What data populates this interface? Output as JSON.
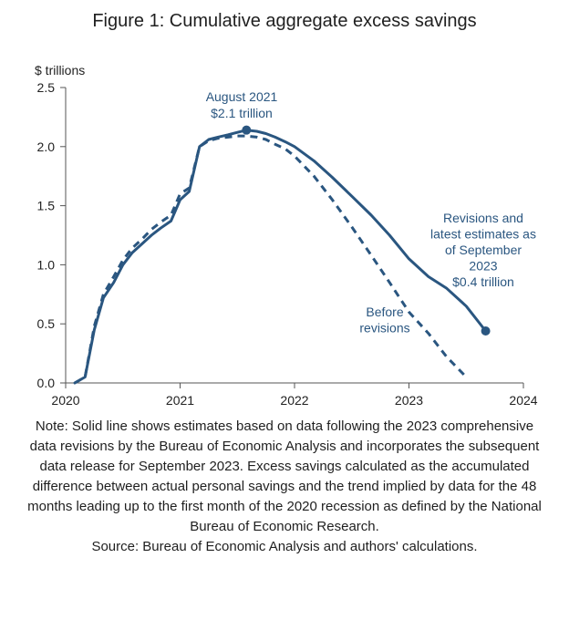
{
  "title": "Figure 1: Cumulative aggregate excess savings",
  "note": "Note: Solid line shows estimates based on data following the 2023 comprehensive data revisions by the Bureau of Economic Analysis and incorporates the subsequent data release for September 2023. Excess savings calculated as the accumulated difference between actual personal savings and the trend implied by data for the 48 months leading up to the first month of the 2020 recession as defined by the National Bureau of Economic Research.",
  "source": "Source: Bureau of Economic Analysis and authors' calculations.",
  "colors": {
    "line": "#2a5680",
    "axis": "#555555",
    "text": "#222222"
  },
  "chart_data": {
    "type": "line",
    "ylabel": "$ trillions",
    "xlim": [
      2020,
      2024
    ],
    "ylim": [
      0,
      2.5
    ],
    "x_ticks": [
      {
        "value": 2020,
        "label": "2020"
      },
      {
        "value": 2021,
        "label": "2021"
      },
      {
        "value": 2022,
        "label": "2022"
      },
      {
        "value": 2023,
        "label": "2023"
      },
      {
        "value": 2024,
        "label": "2024"
      }
    ],
    "y_ticks": [
      {
        "value": 0,
        "label": "0.0"
      },
      {
        "value": 0.5,
        "label": "0.5"
      },
      {
        "value": 1.0,
        "label": "1.0"
      },
      {
        "value": 1.5,
        "label": "1.5"
      },
      {
        "value": 2.0,
        "label": "2.0"
      },
      {
        "value": 2.5,
        "label": "2.5"
      }
    ],
    "grid": false,
    "series": [
      {
        "style": "solid",
        "points": [
          [
            2020.08,
            0.0
          ],
          [
            2020.17,
            0.05
          ],
          [
            2020.25,
            0.45
          ],
          [
            2020.33,
            0.72
          ],
          [
            2020.42,
            0.85
          ],
          [
            2020.5,
            1.0
          ],
          [
            2020.58,
            1.1
          ],
          [
            2020.67,
            1.18
          ],
          [
            2020.75,
            1.25
          ],
          [
            2020.83,
            1.31
          ],
          [
            2020.92,
            1.37
          ],
          [
            2021.0,
            1.55
          ],
          [
            2021.08,
            1.62
          ],
          [
            2021.17,
            2.0
          ],
          [
            2021.25,
            2.06
          ],
          [
            2021.33,
            2.08
          ],
          [
            2021.42,
            2.1
          ],
          [
            2021.5,
            2.12
          ],
          [
            2021.58,
            2.14
          ],
          [
            2021.67,
            2.13
          ],
          [
            2021.75,
            2.11
          ],
          [
            2021.83,
            2.08
          ],
          [
            2021.92,
            2.04
          ],
          [
            2022.0,
            2.0
          ],
          [
            2022.17,
            1.88
          ],
          [
            2022.33,
            1.74
          ],
          [
            2022.5,
            1.58
          ],
          [
            2022.67,
            1.42
          ],
          [
            2022.83,
            1.25
          ],
          [
            2023.0,
            1.05
          ],
          [
            2023.17,
            0.9
          ],
          [
            2023.33,
            0.8
          ],
          [
            2023.5,
            0.65
          ],
          [
            2023.67,
            0.44
          ]
        ]
      },
      {
        "style": "dashed",
        "points": [
          [
            2020.08,
            0.0
          ],
          [
            2020.17,
            0.05
          ],
          [
            2020.25,
            0.48
          ],
          [
            2020.33,
            0.75
          ],
          [
            2020.42,
            0.9
          ],
          [
            2020.5,
            1.04
          ],
          [
            2020.58,
            1.14
          ],
          [
            2020.67,
            1.22
          ],
          [
            2020.75,
            1.3
          ],
          [
            2020.83,
            1.36
          ],
          [
            2020.92,
            1.42
          ],
          [
            2021.0,
            1.6
          ],
          [
            2021.08,
            1.65
          ],
          [
            2021.17,
            2.0
          ],
          [
            2021.25,
            2.05
          ],
          [
            2021.33,
            2.07
          ],
          [
            2021.42,
            2.08
          ],
          [
            2021.5,
            2.09
          ],
          [
            2021.58,
            2.09
          ],
          [
            2021.67,
            2.08
          ],
          [
            2021.75,
            2.06
          ],
          [
            2021.83,
            2.02
          ],
          [
            2021.92,
            1.98
          ],
          [
            2022.0,
            1.92
          ],
          [
            2022.17,
            1.75
          ],
          [
            2022.33,
            1.55
          ],
          [
            2022.5,
            1.32
          ],
          [
            2022.67,
            1.08
          ],
          [
            2022.83,
            0.85
          ],
          [
            2023.0,
            0.6
          ],
          [
            2023.17,
            0.42
          ],
          [
            2023.33,
            0.22
          ],
          [
            2023.5,
            0.05
          ]
        ]
      }
    ],
    "markers": [
      {
        "x": 2021.58,
        "y": 2.14
      },
      {
        "x": 2023.67,
        "y": 0.44
      }
    ],
    "annotations": [
      {
        "id": "peak",
        "lines": [
          "August 2021",
          "$2.1 trillion"
        ]
      },
      {
        "id": "latest",
        "lines": [
          "Revisions and",
          "latest estimates as",
          "of September",
          "2023",
          "$0.4 trillion"
        ]
      },
      {
        "id": "before",
        "lines": [
          "Before",
          "revisions"
        ]
      }
    ]
  }
}
